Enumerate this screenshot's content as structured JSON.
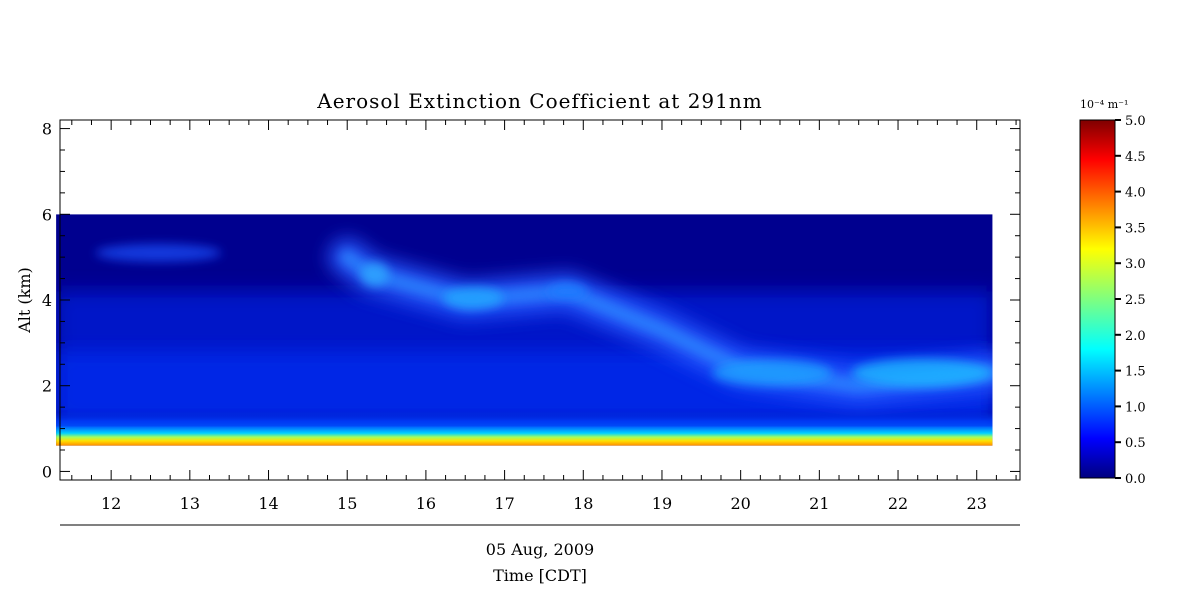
{
  "chart_data": {
    "type": "heatmap",
    "title": "Aerosol Extinction Coefficient at 291nm",
    "xlabel": "Time [CDT]",
    "date_label": "05 Aug, 2009",
    "ylabel": "Alt (km)",
    "xlim": [
      11.35,
      23.55
    ],
    "ylim": [
      -0.2,
      8.2
    ],
    "x_ticks": [
      12,
      13,
      14,
      15,
      16,
      17,
      18,
      19,
      20,
      21,
      22,
      23
    ],
    "y_ticks": [
      0,
      2,
      4,
      6,
      8
    ],
    "data_extent": {
      "x": [
        11.3,
        23.2
      ],
      "y": [
        0.6,
        6.0
      ]
    },
    "colorscale": "jet",
    "colorbar": {
      "unit_label": "10⁻⁴ m⁻¹",
      "range": [
        0,
        5
      ],
      "ticks": [
        "0.0",
        "0.5",
        "1.0",
        "1.5",
        "2.0",
        "2.5",
        "3.0",
        "3.5",
        "4.0",
        "4.5",
        "5.0"
      ]
    },
    "features": [
      {
        "name": "surface_layer",
        "time": [
          11.3,
          23.2
        ],
        "alt": [
          0.6,
          0.85
        ],
        "value": 4.0
      },
      {
        "name": "boundary_layer",
        "time": [
          11.3,
          23.2
        ],
        "alt": [
          0.85,
          1.2
        ],
        "value": 1.6
      },
      {
        "name": "elevated_layer",
        "time_alt_path": [
          [
            15.0,
            5.0
          ],
          [
            15.3,
            4.6
          ],
          [
            16.5,
            4.0
          ],
          [
            17.8,
            4.2
          ],
          [
            19.0,
            3.3
          ],
          [
            20.0,
            2.4
          ],
          [
            21.5,
            2.0
          ],
          [
            23.2,
            2.3
          ]
        ],
        "value": 1.8
      }
    ]
  }
}
